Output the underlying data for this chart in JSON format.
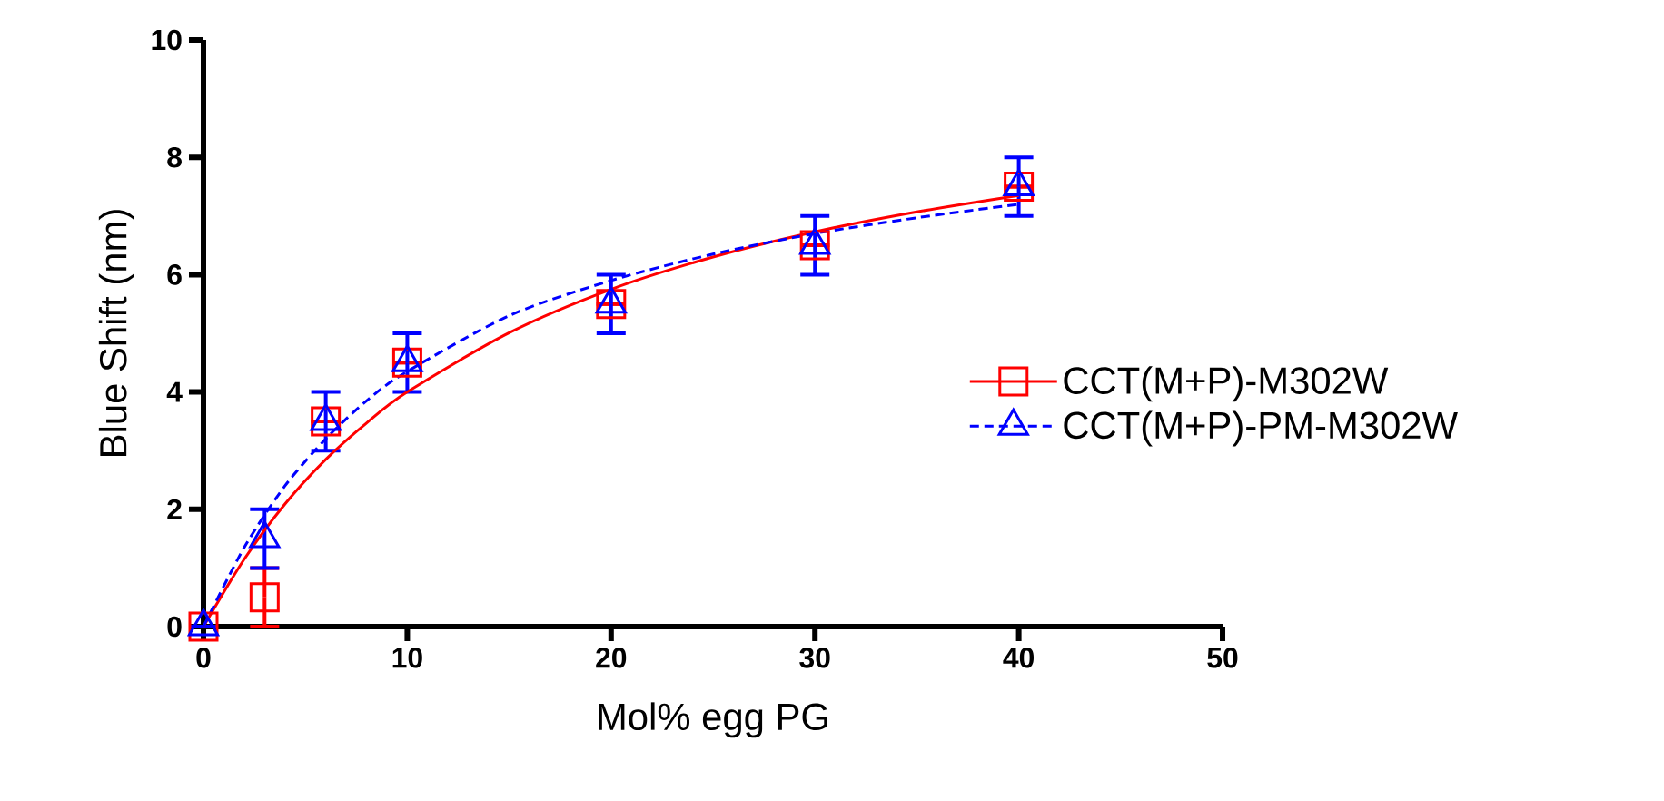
{
  "chart_data": {
    "type": "scatter",
    "xlabel": "Mol% egg PG",
    "ylabel": "Blue Shift (nm)",
    "xlim": [
      0,
      50
    ],
    "ylim": [
      0,
      10
    ],
    "xticks": [
      0,
      10,
      20,
      30,
      40,
      50
    ],
    "yticks": [
      0,
      2,
      4,
      6,
      8,
      10
    ],
    "grid": false,
    "legend": "right",
    "series": [
      {
        "name": "CCT(M+P)-M302W",
        "type": "scatter",
        "color": "#ff0000",
        "marker": "square",
        "line_style": "solid",
        "x": [
          0,
          3,
          6,
          10,
          20,
          30,
          40
        ],
        "values": [
          0,
          0.5,
          3.5,
          4.5,
          5.5,
          6.5,
          7.5
        ],
        "errors": [
          null,
          0.5,
          null,
          null,
          null,
          null,
          null
        ]
      },
      {
        "name": "CCT(M+P)-PM-M302W",
        "type": "scatter",
        "color": "#0000ff",
        "marker": "triangle",
        "line_style": "dashed",
        "x": [
          0,
          3,
          6,
          10,
          20,
          30,
          40
        ],
        "values": [
          0,
          1.5,
          3.5,
          4.5,
          5.5,
          6.5,
          7.5
        ],
        "errors": [
          null,
          0.5,
          0.5,
          0.5,
          0.5,
          0.5,
          0.5
        ]
      },
      {
        "type": "line",
        "color": "#ff0000",
        "marker": "none",
        "line_style": "solid",
        "x": [
          0,
          2,
          4,
          6,
          8,
          10,
          15,
          20,
          25,
          30,
          35,
          40
        ],
        "values": [
          0,
          1.15,
          2.09,
          2.85,
          3.47,
          4.0,
          5.01,
          5.75,
          6.3,
          6.73,
          7.07,
          7.35
        ]
      },
      {
        "type": "line",
        "color": "#0000ff",
        "marker": "none",
        "line_style": "dashed",
        "x": [
          0,
          2,
          4,
          6,
          8,
          10,
          15,
          20,
          25,
          30,
          35,
          40
        ],
        "values": [
          0,
          1.35,
          2.4,
          3.2,
          3.85,
          4.35,
          5.3,
          5.9,
          6.35,
          6.7,
          6.97,
          7.2
        ]
      }
    ]
  }
}
